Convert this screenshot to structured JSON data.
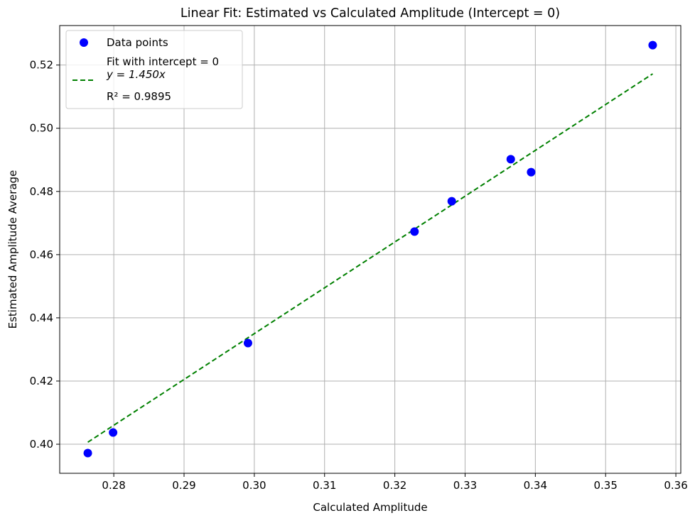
{
  "chart_data": {
    "type": "scatter",
    "title": "Linear Fit: Estimated vs Calculated Amplitude (Intercept = 0)",
    "xlabel": "Calculated Amplitude",
    "ylabel": "Estimated Amplitude Average",
    "xlim": [
      0.2723,
      0.3607
    ],
    "ylim": [
      0.3908,
      0.5325
    ],
    "xticks": [
      0.28,
      0.29,
      0.3,
      0.31,
      0.32,
      0.33,
      0.34,
      0.35,
      0.36
    ],
    "xtick_labels": [
      "0.28",
      "0.29",
      "0.30",
      "0.31",
      "0.32",
      "0.33",
      "0.34",
      "0.35",
      "0.36"
    ],
    "yticks": [
      0.4,
      0.42,
      0.44,
      0.46,
      0.48,
      0.5,
      0.52
    ],
    "ytick_labels": [
      "0.40",
      "0.42",
      "0.44",
      "0.46",
      "0.48",
      "0.50",
      "0.52"
    ],
    "grid": true,
    "legend_position": "top-left",
    "legend": {
      "points_label": "Data points",
      "fit_line1": "Fit with intercept = 0",
      "fit_eq": "y = 1.450x",
      "r2_text": "R² = 0.9895"
    },
    "series": [
      {
        "name": "Data points",
        "type": "scatter",
        "color": "#0000ff",
        "x": [
          0.2763,
          0.2799,
          0.2991,
          0.3228,
          0.3281,
          0.3365,
          0.3394,
          0.3567
        ],
        "y": [
          0.3972,
          0.4037,
          0.432,
          0.4673,
          0.4769,
          0.4902,
          0.4861,
          0.5263
        ]
      },
      {
        "name": "Fit with intercept = 0",
        "type": "line",
        "style": "dashed",
        "color": "#008000",
        "slope": 1.45,
        "intercept": 0,
        "x_range": [
          0.2763,
          0.3567
        ]
      }
    ]
  }
}
